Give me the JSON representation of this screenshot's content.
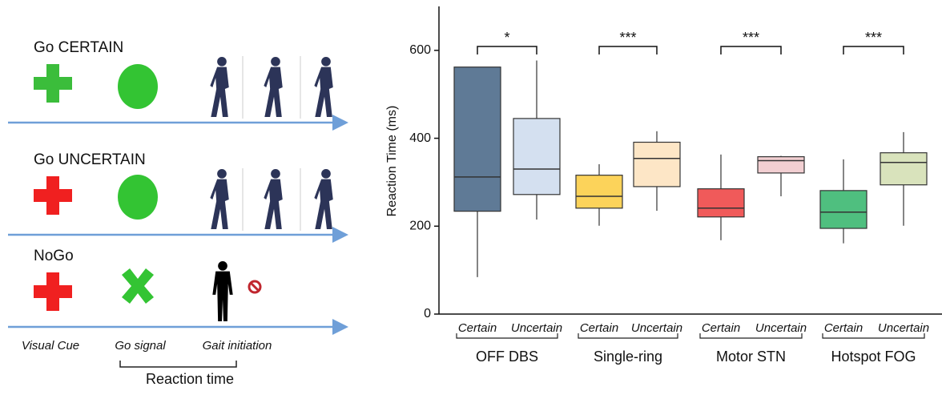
{
  "diagram": {
    "rows": [
      "Go CERTAIN",
      "Go UNCERTAIN",
      "NoGo"
    ],
    "footer_labels": [
      "Visual Cue",
      "Go signal",
      "Gait initiation"
    ],
    "bracket_label": "Reaction time"
  },
  "chart_data": {
    "type": "box",
    "ylabel": "Reaction Time (ms)",
    "ylim": [
      0,
      700
    ],
    "yticks": [
      0,
      200,
      400,
      600
    ],
    "groups": [
      {
        "name": "OFF DBS",
        "significance": "*",
        "boxes": [
          {
            "label": "Certain",
            "color": "#5f7a96",
            "min": 84,
            "q1": 234,
            "median": 312,
            "q3": 562,
            "max": 562
          },
          {
            "label": "Uncertain",
            "color": "#d4e0f0",
            "min": 215,
            "q1": 272,
            "median": 330,
            "q3": 445,
            "max": 577
          }
        ]
      },
      {
        "name": "Single-ring",
        "significance": "***",
        "boxes": [
          {
            "label": "Certain",
            "color": "#fcd35a",
            "min": 201,
            "q1": 241,
            "median": 268,
            "q3": 316,
            "max": 341
          },
          {
            "label": "Uncertain",
            "color": "#fde6c6",
            "min": 235,
            "q1": 290,
            "median": 354,
            "q3": 391,
            "max": 416
          }
        ]
      },
      {
        "name": "Motor STN",
        "significance": "***",
        "boxes": [
          {
            "label": "Certain",
            "color": "#f05a5a",
            "min": 168,
            "q1": 221,
            "median": 241,
            "q3": 285,
            "max": 363
          },
          {
            "label": "Uncertain",
            "color": "#f2cfd2",
            "min": 268,
            "q1": 321,
            "median": 349,
            "q3": 358,
            "max": 360
          }
        ]
      },
      {
        "name": "Hotspot FOG",
        "significance": "***",
        "boxes": [
          {
            "label": "Certain",
            "color": "#4fbf7f",
            "min": 161,
            "q1": 195,
            "median": 232,
            "q3": 281,
            "max": 352
          },
          {
            "label": "Uncertain",
            "color": "#d9e3bc",
            "min": 201,
            "q1": 294,
            "median": 345,
            "q3": 367,
            "max": 414
          }
        ]
      }
    ]
  }
}
